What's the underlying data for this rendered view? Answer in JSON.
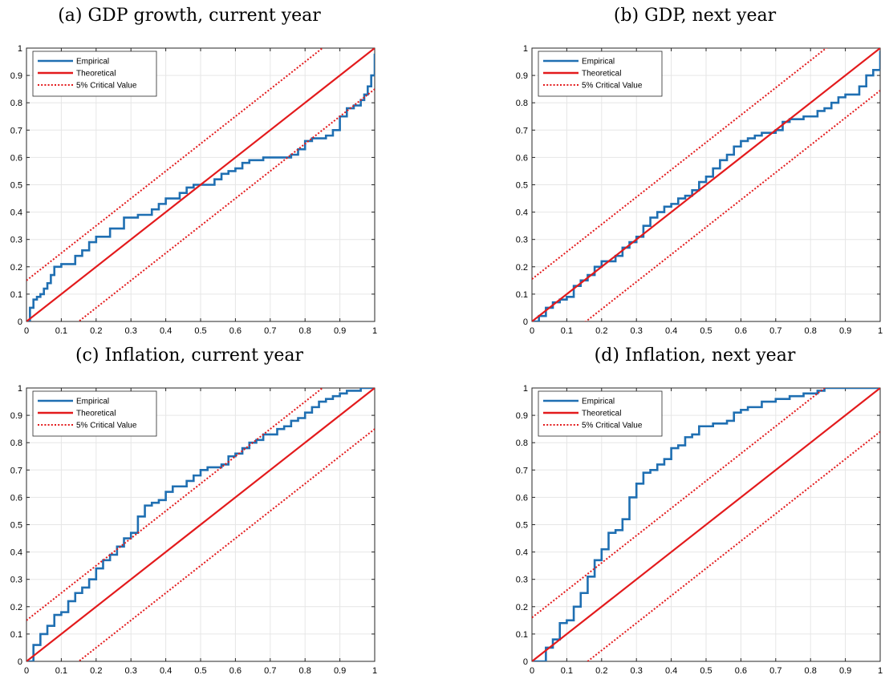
{
  "chart_data": [
    {
      "type": "line",
      "title": "(a) GDP growth, current year",
      "xlim": [
        0,
        1
      ],
      "ylim": [
        0,
        1
      ],
      "xticks": [
        "0",
        "0.1",
        "0.2",
        "0.3",
        "0.4",
        "0.5",
        "0.6",
        "0.7",
        "0.8",
        "0.9",
        "1"
      ],
      "yticks": [
        "0",
        "0.1",
        "0.2",
        "0.3",
        "0.4",
        "0.5",
        "0.6",
        "0.7",
        "0.8",
        "0.9",
        "1"
      ],
      "grid": true,
      "legend_position": "top-left",
      "critical_value": 0.15,
      "series": [
        {
          "name": "Empirical",
          "color": "#1f6fb2",
          "style": "solid",
          "x": [
            0,
            0.01,
            0.02,
            0.03,
            0.04,
            0.05,
            0.06,
            0.07,
            0.08,
            0.1,
            0.12,
            0.14,
            0.16,
            0.18,
            0.2,
            0.22,
            0.24,
            0.26,
            0.28,
            0.3,
            0.32,
            0.34,
            0.36,
            0.38,
            0.4,
            0.42,
            0.44,
            0.46,
            0.48,
            0.5,
            0.52,
            0.54,
            0.56,
            0.58,
            0.6,
            0.62,
            0.64,
            0.66,
            0.68,
            0.7,
            0.72,
            0.74,
            0.76,
            0.78,
            0.8,
            0.82,
            0.84,
            0.86,
            0.88,
            0.9,
            0.92,
            0.94,
            0.96,
            0.97,
            0.98,
            0.99,
            1
          ],
          "y": [
            0,
            0.05,
            0.08,
            0.09,
            0.1,
            0.12,
            0.14,
            0.17,
            0.2,
            0.21,
            0.21,
            0.24,
            0.26,
            0.29,
            0.31,
            0.31,
            0.34,
            0.34,
            0.38,
            0.38,
            0.39,
            0.39,
            0.41,
            0.43,
            0.45,
            0.45,
            0.47,
            0.49,
            0.5,
            0.5,
            0.5,
            0.52,
            0.54,
            0.55,
            0.56,
            0.58,
            0.59,
            0.59,
            0.6,
            0.6,
            0.6,
            0.6,
            0.61,
            0.63,
            0.66,
            0.67,
            0.67,
            0.68,
            0.7,
            0.75,
            0.78,
            0.79,
            0.81,
            0.83,
            0.86,
            0.9,
            0.98
          ]
        },
        {
          "name": "Theoretical",
          "color": "#e31a1c",
          "style": "solid",
          "x": [
            0,
            1
          ],
          "y": [
            0,
            1
          ]
        },
        {
          "name": "5% Critical Value",
          "color": "#e31a1c",
          "style": "dotted",
          "x": [
            0,
            1
          ],
          "y": [
            0.15,
            1.15
          ]
        },
        {
          "name": "",
          "color": "#e31a1c",
          "style": "dotted",
          "x": [
            0,
            1
          ],
          "y": [
            -0.15,
            0.85
          ]
        }
      ]
    },
    {
      "type": "line",
      "title": "(b) GDP, next year",
      "xlim": [
        0,
        1
      ],
      "ylim": [
        0,
        1
      ],
      "xticks": [
        "0",
        "0.1",
        "0.2",
        "0.3",
        "0.4",
        "0.5",
        "0.6",
        "0.7",
        "0.8",
        "0.9",
        "1"
      ],
      "yticks": [
        "0",
        "0.1",
        "0.2",
        "0.3",
        "0.4",
        "0.5",
        "0.6",
        "0.7",
        "0.8",
        "0.9",
        "1"
      ],
      "grid": true,
      "legend_position": "top-left",
      "critical_value": 0.155,
      "series": [
        {
          "name": "Empirical",
          "color": "#1f6fb2",
          "style": "solid",
          "x": [
            0,
            0.02,
            0.04,
            0.06,
            0.08,
            0.1,
            0.12,
            0.14,
            0.16,
            0.18,
            0.2,
            0.22,
            0.24,
            0.26,
            0.28,
            0.3,
            0.32,
            0.34,
            0.36,
            0.38,
            0.4,
            0.42,
            0.44,
            0.46,
            0.48,
            0.5,
            0.52,
            0.54,
            0.56,
            0.58,
            0.6,
            0.62,
            0.64,
            0.66,
            0.68,
            0.7,
            0.72,
            0.74,
            0.76,
            0.78,
            0.8,
            0.82,
            0.84,
            0.86,
            0.88,
            0.9,
            0.92,
            0.94,
            0.96,
            0.98,
            1
          ],
          "y": [
            0,
            0.02,
            0.05,
            0.07,
            0.08,
            0.09,
            0.13,
            0.15,
            0.17,
            0.2,
            0.22,
            0.22,
            0.24,
            0.27,
            0.29,
            0.31,
            0.35,
            0.38,
            0.4,
            0.42,
            0.43,
            0.45,
            0.46,
            0.48,
            0.51,
            0.53,
            0.56,
            0.59,
            0.61,
            0.64,
            0.66,
            0.67,
            0.68,
            0.69,
            0.69,
            0.7,
            0.73,
            0.74,
            0.74,
            0.75,
            0.75,
            0.77,
            0.78,
            0.8,
            0.82,
            0.83,
            0.83,
            0.86,
            0.9,
            0.92,
            0.99
          ]
        },
        {
          "name": "Theoretical",
          "color": "#e31a1c",
          "style": "solid",
          "x": [
            0,
            1
          ],
          "y": [
            0,
            1
          ]
        },
        {
          "name": "5% Critical Value",
          "color": "#e31a1c",
          "style": "dotted",
          "x": [
            0,
            1
          ],
          "y": [
            0.155,
            1.155
          ]
        },
        {
          "name": "",
          "color": "#e31a1c",
          "style": "dotted",
          "x": [
            0,
            1
          ],
          "y": [
            -0.155,
            0.845
          ]
        }
      ]
    },
    {
      "type": "line",
      "title": "(c) Inflation, current year",
      "xlim": [
        0,
        1
      ],
      "ylim": [
        0,
        1
      ],
      "xticks": [
        "0",
        "0.1",
        "0.2",
        "0.3",
        "0.4",
        "0.5",
        "0.6",
        "0.7",
        "0.8",
        "0.9",
        "1"
      ],
      "yticks": [
        "0",
        "0.1",
        "0.2",
        "0.3",
        "0.4",
        "0.5",
        "0.6",
        "0.7",
        "0.8",
        "0.9",
        "1"
      ],
      "grid": true,
      "legend_position": "top-left",
      "critical_value": 0.15,
      "series": [
        {
          "name": "Empirical",
          "color": "#1f6fb2",
          "style": "solid",
          "x": [
            0,
            0.02,
            0.04,
            0.06,
            0.08,
            0.1,
            0.12,
            0.14,
            0.16,
            0.18,
            0.2,
            0.22,
            0.24,
            0.26,
            0.28,
            0.3,
            0.32,
            0.34,
            0.36,
            0.38,
            0.4,
            0.42,
            0.44,
            0.46,
            0.48,
            0.5,
            0.52,
            0.54,
            0.56,
            0.58,
            0.6,
            0.62,
            0.64,
            0.66,
            0.68,
            0.7,
            0.72,
            0.74,
            0.76,
            0.78,
            0.8,
            0.82,
            0.84,
            0.86,
            0.88,
            0.9,
            0.92,
            0.94,
            0.96,
            0.98,
            1
          ],
          "y": [
            0,
            0.06,
            0.1,
            0.13,
            0.17,
            0.18,
            0.22,
            0.25,
            0.27,
            0.3,
            0.34,
            0.37,
            0.39,
            0.42,
            0.45,
            0.47,
            0.53,
            0.57,
            0.58,
            0.59,
            0.62,
            0.64,
            0.64,
            0.66,
            0.68,
            0.7,
            0.71,
            0.71,
            0.72,
            0.75,
            0.76,
            0.78,
            0.8,
            0.81,
            0.83,
            0.83,
            0.85,
            0.86,
            0.88,
            0.89,
            0.91,
            0.93,
            0.95,
            0.96,
            0.97,
            0.98,
            0.99,
            0.99,
            1,
            1,
            1
          ]
        },
        {
          "name": "Theoretical",
          "color": "#e31a1c",
          "style": "solid",
          "x": [
            0,
            1
          ],
          "y": [
            0,
            1
          ]
        },
        {
          "name": "5% Critical Value",
          "color": "#e31a1c",
          "style": "dotted",
          "x": [
            0,
            1
          ],
          "y": [
            0.15,
            1.15
          ]
        },
        {
          "name": "",
          "color": "#e31a1c",
          "style": "dotted",
          "x": [
            0,
            1
          ],
          "y": [
            -0.15,
            0.85
          ]
        }
      ]
    },
    {
      "type": "line",
      "title": "(d) Inflation, next year",
      "xlim": [
        0,
        1
      ],
      "ylim": [
        0,
        1
      ],
      "xticks": [
        "0",
        "0.1",
        "0.2",
        "0.3",
        "0.4",
        "0.5",
        "0.6",
        "0.7",
        "0.8",
        "0.9",
        "1"
      ],
      "yticks": [
        "0",
        "0.1",
        "0.2",
        "0.3",
        "0.4",
        "0.5",
        "0.6",
        "0.7",
        "0.8",
        "0.9",
        "1"
      ],
      "grid": true,
      "legend_position": "top-left",
      "critical_value": 0.16,
      "series": [
        {
          "name": "Empirical",
          "color": "#1f6fb2",
          "style": "solid",
          "x": [
            0,
            0.02,
            0.04,
            0.06,
            0.08,
            0.1,
            0.12,
            0.14,
            0.16,
            0.18,
            0.2,
            0.22,
            0.24,
            0.26,
            0.28,
            0.3,
            0.32,
            0.34,
            0.36,
            0.38,
            0.4,
            0.42,
            0.44,
            0.46,
            0.48,
            0.5,
            0.52,
            0.54,
            0.56,
            0.58,
            0.6,
            0.62,
            0.64,
            0.66,
            0.68,
            0.7,
            0.72,
            0.74,
            0.76,
            0.78,
            0.8,
            0.82,
            0.84,
            0.86,
            0.88,
            0.9,
            0.92,
            0.94,
            0.96,
            0.98,
            1
          ],
          "y": [
            0,
            0,
            0.05,
            0.08,
            0.14,
            0.15,
            0.2,
            0.25,
            0.31,
            0.37,
            0.41,
            0.47,
            0.48,
            0.52,
            0.6,
            0.65,
            0.69,
            0.7,
            0.72,
            0.74,
            0.78,
            0.79,
            0.82,
            0.83,
            0.86,
            0.86,
            0.87,
            0.87,
            0.88,
            0.91,
            0.92,
            0.93,
            0.93,
            0.95,
            0.95,
            0.96,
            0.96,
            0.97,
            0.97,
            0.98,
            0.98,
            0.99,
            1,
            1,
            1,
            1,
            1,
            1,
            1,
            1,
            1
          ]
        },
        {
          "name": "Theoretical",
          "color": "#e31a1c",
          "style": "solid",
          "x": [
            0,
            1
          ],
          "y": [
            0,
            1
          ]
        },
        {
          "name": "5% Critical Value",
          "color": "#e31a1c",
          "style": "dotted",
          "x": [
            0,
            1
          ],
          "y": [
            0.16,
            1.16
          ]
        },
        {
          "name": "",
          "color": "#e31a1c",
          "style": "dotted",
          "x": [
            0,
            1
          ],
          "y": [
            -0.16,
            0.84
          ]
        }
      ]
    }
  ]
}
